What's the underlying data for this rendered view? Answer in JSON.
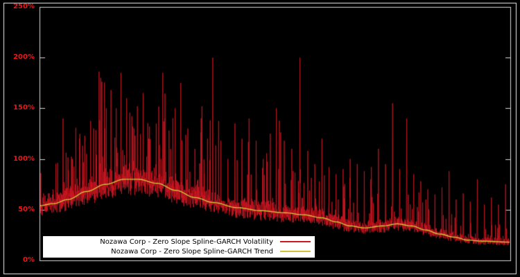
{
  "chart_data": {
    "type": "line",
    "title": "",
    "xlabel": "",
    "ylabel": "",
    "ylim": [
      0,
      250
    ],
    "y_ticks": [
      "0%",
      "50%",
      "100%",
      "150%",
      "200%",
      "250%"
    ],
    "y_tick_values": [
      0,
      50,
      100,
      150,
      200,
      250
    ],
    "grid": false,
    "background": "#000000",
    "frame_color": "#d8d8d8",
    "outer_border_color": "#f0f0f0",
    "tick_label_color": "#e8191c",
    "legend_position": "bottom-left",
    "legend_background": "#ffffff",
    "legend_text_color": "#000000",
    "series": [
      {
        "name": "Nozawa Corp - Zero Slope Spline-GARCH Volatility",
        "color": "#cf1722",
        "role": "volatility"
      },
      {
        "name": "Nozawa Corp - Zero Slope Spline-GARCH Trend",
        "color": "#cfc33e",
        "role": "trend"
      }
    ],
    "trend_points": [
      [
        0.0,
        54
      ],
      [
        0.03,
        56
      ],
      [
        0.06,
        60
      ],
      [
        0.1,
        68
      ],
      [
        0.14,
        75
      ],
      [
        0.18,
        80
      ],
      [
        0.21,
        80
      ],
      [
        0.25,
        76
      ],
      [
        0.29,
        69
      ],
      [
        0.33,
        62
      ],
      [
        0.37,
        57
      ],
      [
        0.42,
        52
      ],
      [
        0.47,
        49
      ],
      [
        0.52,
        47
      ],
      [
        0.56,
        45
      ],
      [
        0.6,
        42
      ],
      [
        0.63,
        38
      ],
      [
        0.66,
        34
      ],
      [
        0.69,
        32
      ],
      [
        0.73,
        34
      ],
      [
        0.76,
        36
      ],
      [
        0.79,
        34
      ],
      [
        0.82,
        30
      ],
      [
        0.85,
        26
      ],
      [
        0.88,
        23
      ],
      [
        0.91,
        20
      ],
      [
        0.94,
        19
      ],
      [
        1.0,
        18
      ]
    ],
    "spikes": [
      [
        0.035,
        90
      ],
      [
        0.05,
        140
      ],
      [
        0.07,
        100
      ],
      [
        0.085,
        120
      ],
      [
        0.1,
        105
      ],
      [
        0.115,
        130
      ],
      [
        0.13,
        180
      ],
      [
        0.142,
        150
      ],
      [
        0.152,
        168
      ],
      [
        0.163,
        150
      ],
      [
        0.173,
        185
      ],
      [
        0.185,
        160
      ],
      [
        0.196,
        142
      ],
      [
        0.208,
        152
      ],
      [
        0.22,
        165
      ],
      [
        0.232,
        120
      ],
      [
        0.248,
        135
      ],
      [
        0.262,
        185
      ],
      [
        0.275,
        128
      ],
      [
        0.288,
        150
      ],
      [
        0.3,
        175
      ],
      [
        0.315,
        130
      ],
      [
        0.33,
        110
      ],
      [
        0.345,
        152
      ],
      [
        0.357,
        120
      ],
      [
        0.368,
        200
      ],
      [
        0.385,
        118
      ],
      [
        0.4,
        100
      ],
      [
        0.415,
        135
      ],
      [
        0.43,
        120
      ],
      [
        0.445,
        140
      ],
      [
        0.46,
        118
      ],
      [
        0.475,
        100
      ],
      [
        0.49,
        125
      ],
      [
        0.503,
        150
      ],
      [
        0.52,
        118
      ],
      [
        0.536,
        110
      ],
      [
        0.553,
        200
      ],
      [
        0.57,
        108
      ],
      [
        0.585,
        95
      ],
      [
        0.6,
        120
      ],
      [
        0.615,
        92
      ],
      [
        0.63,
        85
      ],
      [
        0.645,
        90
      ],
      [
        0.66,
        100
      ],
      [
        0.675,
        95
      ],
      [
        0.69,
        88
      ],
      [
        0.705,
        92
      ],
      [
        0.72,
        110
      ],
      [
        0.735,
        95
      ],
      [
        0.75,
        155
      ],
      [
        0.765,
        90
      ],
      [
        0.78,
        140
      ],
      [
        0.795,
        85
      ],
      [
        0.81,
        78
      ],
      [
        0.825,
        70
      ],
      [
        0.84,
        65
      ],
      [
        0.855,
        72
      ],
      [
        0.87,
        88
      ],
      [
        0.885,
        60
      ],
      [
        0.9,
        66
      ],
      [
        0.915,
        58
      ],
      [
        0.93,
        80
      ],
      [
        0.945,
        55
      ],
      [
        0.96,
        62
      ],
      [
        0.975,
        55
      ],
      [
        0.99,
        75
      ]
    ],
    "noise": {
      "seed": 1337,
      "samples": 2800
    }
  }
}
